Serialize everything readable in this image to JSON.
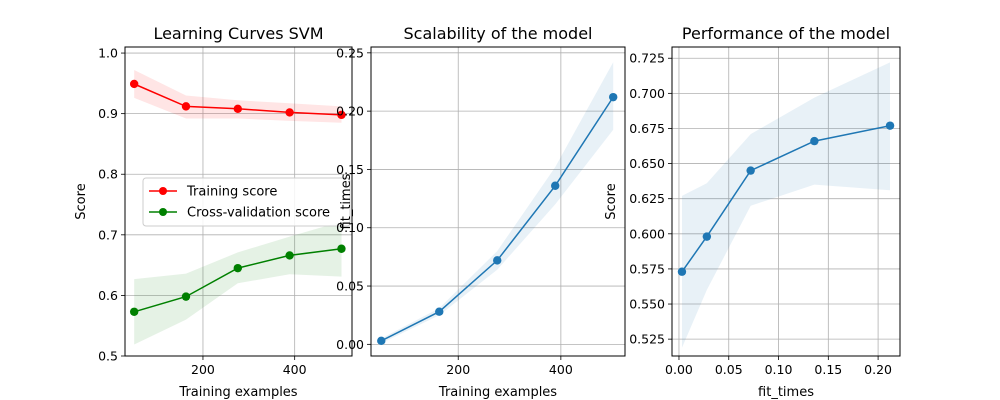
{
  "chart_data": [
    {
      "type": "line",
      "title": "Learning Curves SVM",
      "xlabel": "Training examples",
      "ylabel": "Score",
      "xlim": [
        30,
        525
      ],
      "ylim": [
        0.5,
        1.01
      ],
      "xticks": [
        {
          "v": 200,
          "label": "200"
        },
        {
          "v": 400,
          "label": "400"
        }
      ],
      "yticks": [
        {
          "v": 0.5,
          "label": "0.5"
        },
        {
          "v": 0.6,
          "label": "0.6"
        },
        {
          "v": 0.7,
          "label": "0.7"
        },
        {
          "v": 0.8,
          "label": "0.8"
        },
        {
          "v": 0.9,
          "label": "0.9"
        },
        {
          "v": 1.0,
          "label": "1.0"
        }
      ],
      "grid": true,
      "legend": "center-right",
      "x": [
        50,
        163,
        276,
        389,
        502
      ],
      "series": [
        {
          "name": "Training score",
          "color": "#ff0000",
          "values": [
            0.949,
            0.912,
            0.908,
            0.902,
            0.898
          ],
          "upper": [
            0.972,
            0.93,
            0.922,
            0.917,
            0.912
          ],
          "lower": [
            0.926,
            0.892,
            0.892,
            0.888,
            0.885
          ]
        },
        {
          "name": "Cross-validation score",
          "color": "#008000",
          "values": [
            0.573,
            0.598,
            0.645,
            0.666,
            0.677
          ],
          "upper": [
            0.627,
            0.636,
            0.671,
            0.697,
            0.722
          ],
          "lower": [
            0.519,
            0.56,
            0.62,
            0.635,
            0.631
          ]
        }
      ]
    },
    {
      "type": "line",
      "title": "Scalability of the model",
      "xlabel": "Training examples",
      "ylabel": "fit_times",
      "xlim": [
        30,
        525
      ],
      "ylim": [
        -0.01,
        0.255
      ],
      "xticks": [
        {
          "v": 200,
          "label": "200"
        },
        {
          "v": 400,
          "label": "400"
        }
      ],
      "yticks": [
        {
          "v": 0.0,
          "label": "0.00"
        },
        {
          "v": 0.05,
          "label": "0.05"
        },
        {
          "v": 0.1,
          "label": "0.10"
        },
        {
          "v": 0.15,
          "label": "0.15"
        },
        {
          "v": 0.2,
          "label": "0.20"
        },
        {
          "v": 0.25,
          "label": "0.25"
        }
      ],
      "grid": true,
      "x": [
        50,
        163,
        276,
        389,
        502
      ],
      "series": [
        {
          "name": "",
          "color": "#1f77b4",
          "values": [
            0.003,
            0.028,
            0.072,
            0.136,
            0.212
          ],
          "upper": [
            0.005,
            0.031,
            0.08,
            0.152,
            0.242
          ],
          "lower": [
            0.001,
            0.025,
            0.064,
            0.12,
            0.184
          ]
        }
      ]
    },
    {
      "type": "line",
      "title": "Performance of the model",
      "xlabel": "fit_times",
      "ylabel": "Score",
      "xlim": [
        -0.007,
        0.222
      ],
      "ylim": [
        0.513,
        0.733
      ],
      "xticks": [
        {
          "v": 0.0,
          "label": "0.00"
        },
        {
          "v": 0.05,
          "label": "0.05"
        },
        {
          "v": 0.1,
          "label": "0.10"
        },
        {
          "v": 0.15,
          "label": "0.15"
        },
        {
          "v": 0.2,
          "label": "0.20"
        }
      ],
      "yticks": [
        {
          "v": 0.525,
          "label": "0.525"
        },
        {
          "v": 0.55,
          "label": "0.550"
        },
        {
          "v": 0.575,
          "label": "0.575"
        },
        {
          "v": 0.6,
          "label": "0.600"
        },
        {
          "v": 0.625,
          "label": "0.625"
        },
        {
          "v": 0.65,
          "label": "0.650"
        },
        {
          "v": 0.675,
          "label": "0.675"
        },
        {
          "v": 0.7,
          "label": "0.700"
        },
        {
          "v": 0.725,
          "label": "0.725"
        }
      ],
      "grid": true,
      "x": [
        0.003,
        0.028,
        0.072,
        0.136,
        0.212
      ],
      "series": [
        {
          "name": "",
          "color": "#1f77b4",
          "values": [
            0.573,
            0.598,
            0.645,
            0.666,
            0.677
          ],
          "upper": [
            0.627,
            0.636,
            0.671,
            0.697,
            0.722
          ],
          "lower": [
            0.519,
            0.56,
            0.62,
            0.635,
            0.631
          ]
        }
      ]
    }
  ]
}
